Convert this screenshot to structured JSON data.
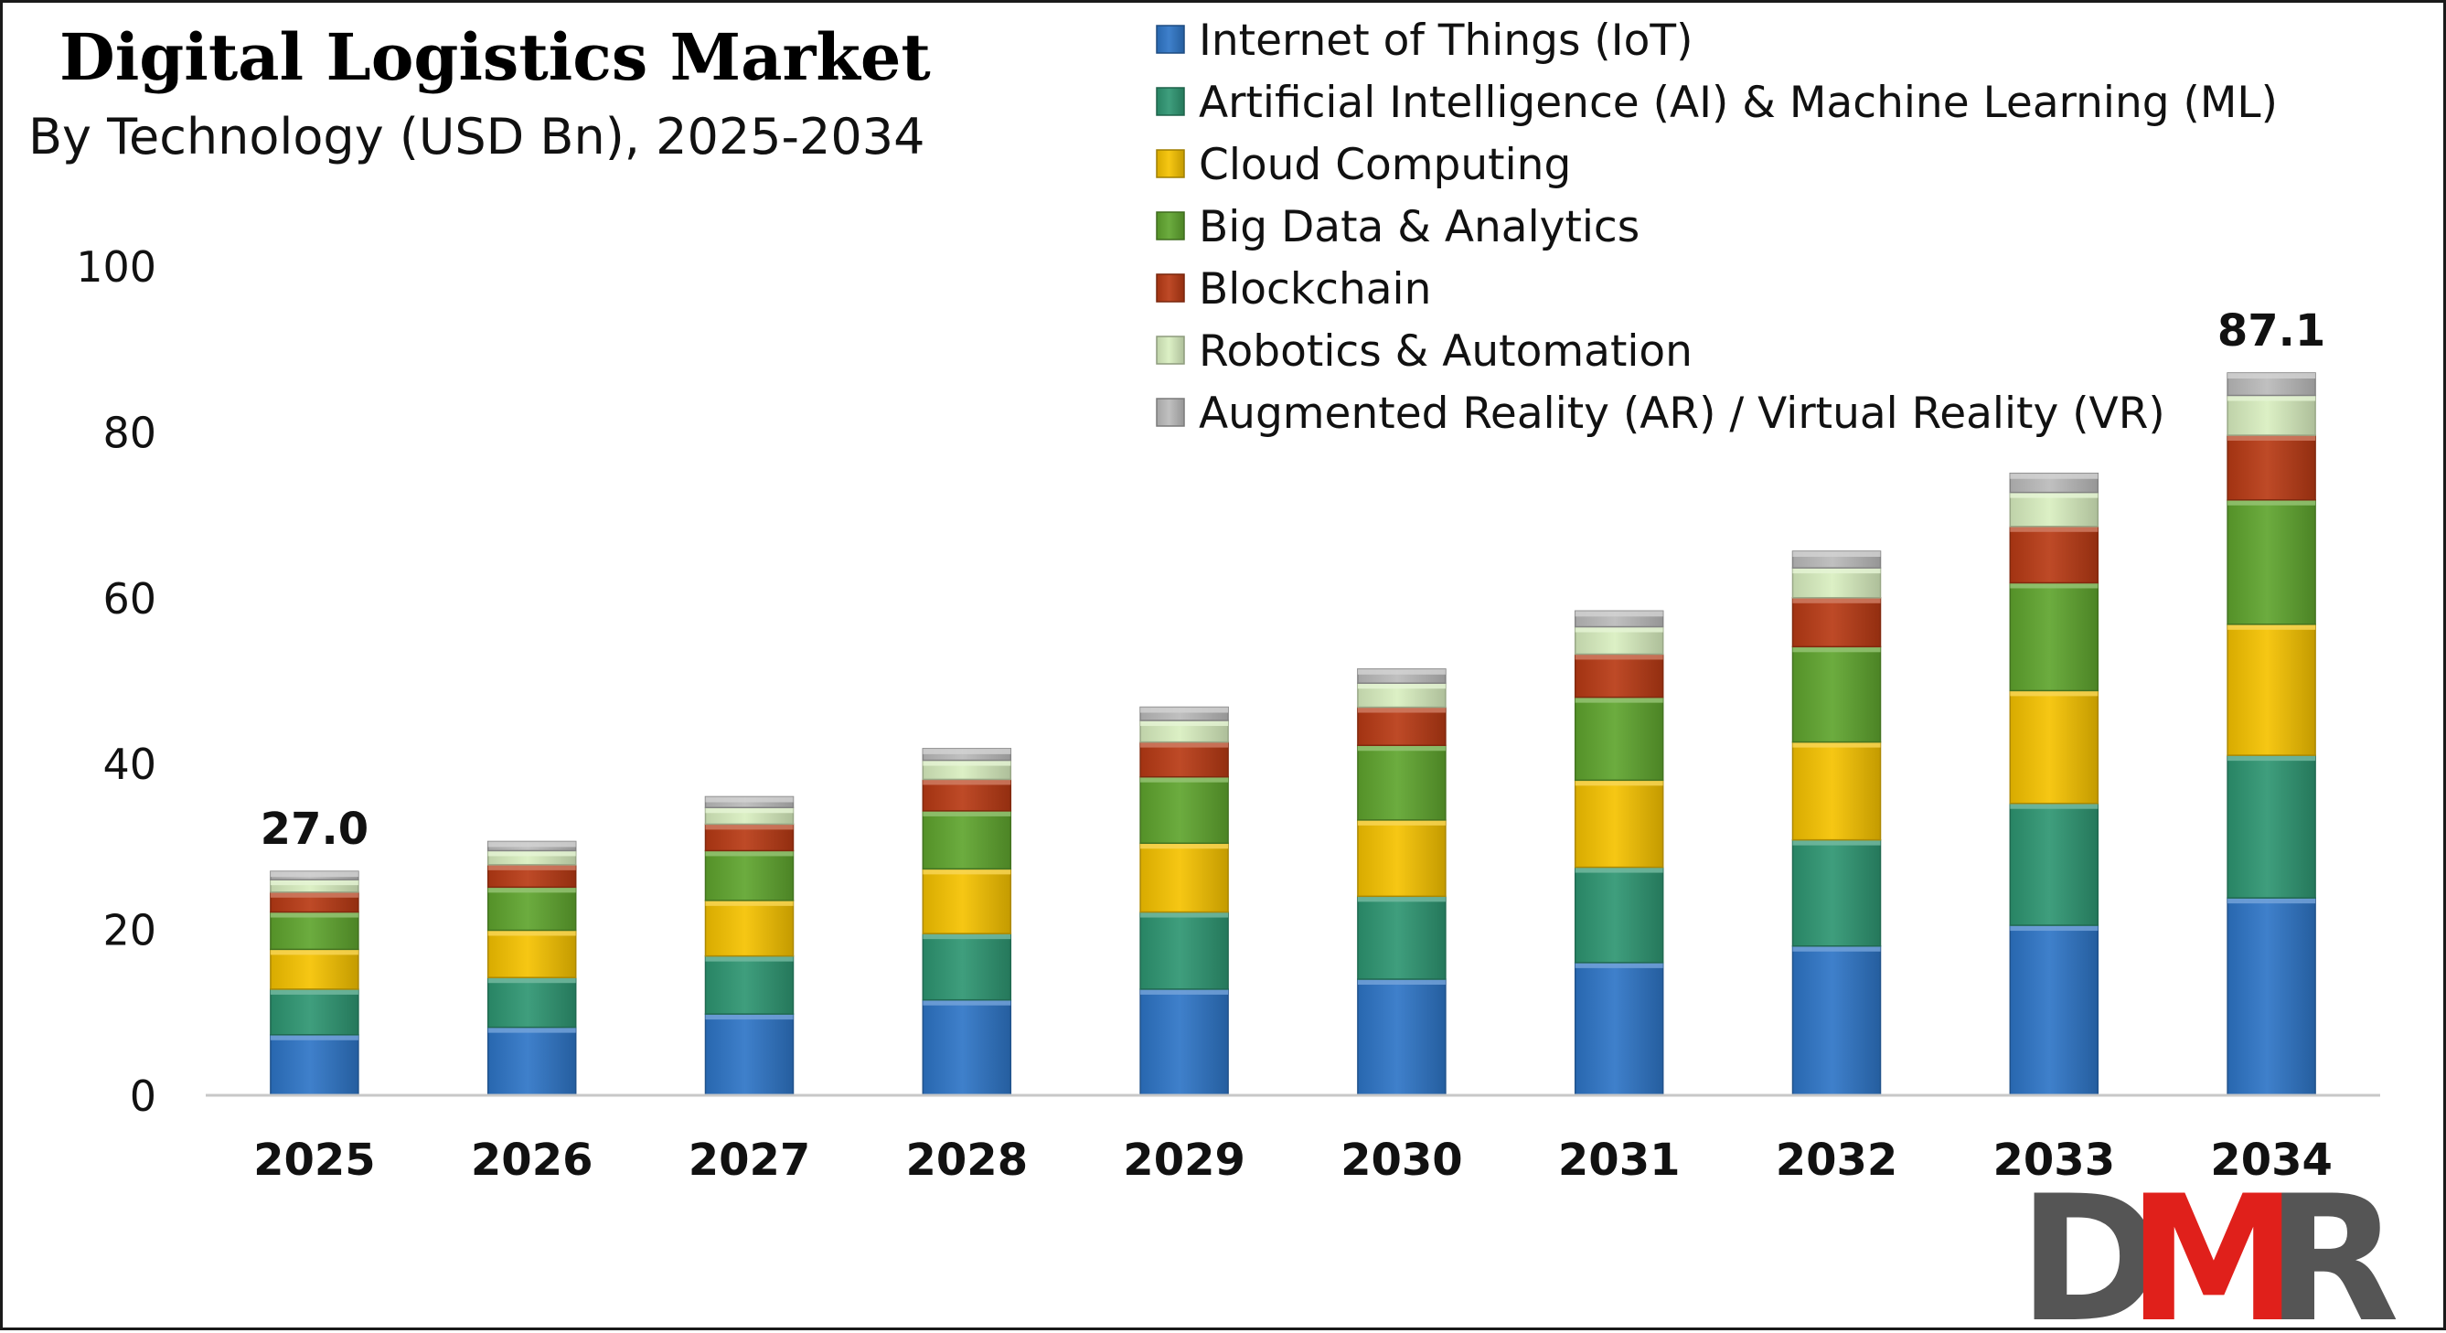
{
  "chart_data": {
    "type": "bar",
    "stacked": true,
    "title": "Digital Logistics Market",
    "subtitle": "By Technology (USD Bn), 2025-2034",
    "xlabel": "",
    "ylabel": "",
    "ylim": [
      0,
      100
    ],
    "yticks": [
      0,
      20,
      40,
      60,
      80,
      100
    ],
    "grid": false,
    "legend_position": "top-right",
    "categories": [
      "2025",
      "2026",
      "2027",
      "2028",
      "2029",
      "2030",
      "2031",
      "2032",
      "2033",
      "2034"
    ],
    "series": [
      {
        "name": "Internet of Things (IoT)",
        "color": "#2E75C7",
        "values": [
          7.3,
          8.2,
          9.8,
          11.5,
          12.8,
          14.0,
          16.0,
          18.0,
          20.5,
          23.8
        ]
      },
      {
        "name": "Artificial Intelligence (AI) & Machine Learning (ML)",
        "color": "#2E9672",
        "values": [
          5.5,
          6.0,
          7.0,
          8.0,
          9.3,
          10.0,
          11.5,
          12.8,
          14.7,
          17.2
        ]
      },
      {
        "name": "Cloud Computing",
        "color": "#F5C200",
        "values": [
          4.8,
          5.7,
          6.7,
          7.8,
          8.3,
          9.2,
          10.5,
          11.8,
          13.6,
          15.8
        ]
      },
      {
        "name": "Big Data & Analytics",
        "color": "#5FA52E",
        "values": [
          4.5,
          5.2,
          6.0,
          7.0,
          8.0,
          9.0,
          10.0,
          11.5,
          13.0,
          15.0
        ]
      },
      {
        "name": "Blockchain",
        "color": "#B83A14",
        "values": [
          2.4,
          2.7,
          3.2,
          3.8,
          4.2,
          4.6,
          5.2,
          5.9,
          6.8,
          7.8
        ]
      },
      {
        "name": "Robotics & Automation",
        "color": "#D9EFC0",
        "values": [
          1.5,
          1.7,
          2.0,
          2.3,
          2.6,
          2.9,
          3.3,
          3.6,
          4.1,
          4.8
        ]
      },
      {
        "name": "Augmented Reality (AR) / Virtual Reality (VR)",
        "color": "#BBBBBB",
        "values": [
          1.0,
          1.1,
          1.3,
          1.4,
          1.6,
          1.7,
          1.9,
          2.0,
          2.3,
          2.7
        ]
      }
    ],
    "data_labels": [
      {
        "category": "2025",
        "text": "27.0"
      },
      {
        "category": "2034",
        "text": "87.1"
      }
    ]
  },
  "logo": {
    "text": "DMR",
    "colors": [
      "#555555",
      "#E0201B",
      "#555555"
    ]
  }
}
